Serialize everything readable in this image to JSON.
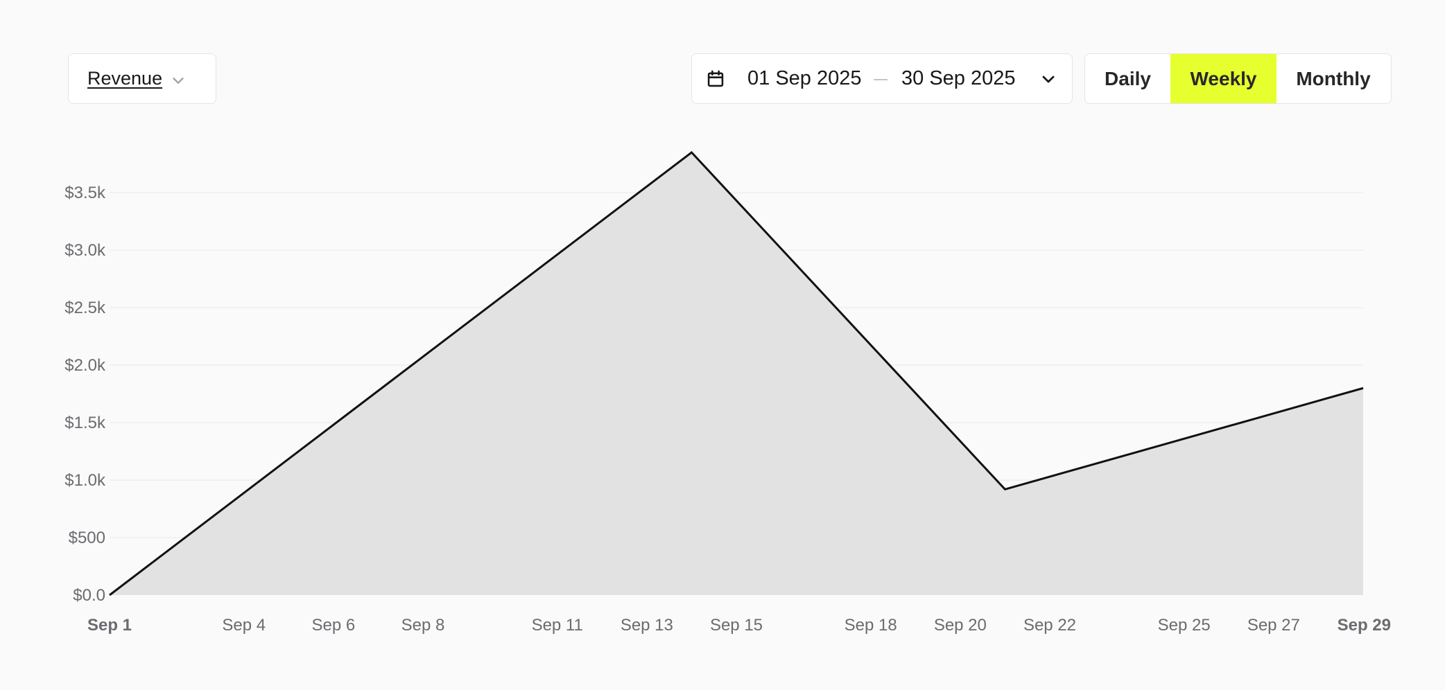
{
  "metric_selector": {
    "label": "Revenue",
    "icon": "chevron-down-icon"
  },
  "date_range": {
    "start": "01 Sep 2025",
    "end": "30 Sep 2025",
    "icon": "calendar-icon"
  },
  "period_toggle": {
    "options": [
      "Daily",
      "Weekly",
      "Monthly"
    ],
    "selected": "Weekly",
    "accent_color": "#e6ff2e"
  },
  "chart_data": {
    "type": "area",
    "x": [
      "Sep 1",
      "Sep 14",
      "Sep 21",
      "Sep 29"
    ],
    "series": [
      {
        "values": [
          0,
          3850,
          920,
          1800
        ]
      }
    ],
    "x_tick_labels": [
      "Sep 1",
      "Sep 4",
      "Sep 6",
      "Sep 8",
      "Sep 11",
      "Sep 13",
      "Sep 15",
      "Sep 18",
      "Sep 20",
      "Sep 22",
      "Sep 25",
      "Sep 27",
      "Sep 29"
    ],
    "x_tick_days": [
      1,
      4,
      6,
      8,
      11,
      13,
      15,
      18,
      20,
      22,
      25,
      27,
      29
    ],
    "bold_x_ticks": [
      "Sep 1",
      "Sep 29"
    ],
    "y_ticks": [
      0,
      500,
      1000,
      1500,
      2000,
      2500,
      3000,
      3500
    ],
    "y_tick_labels": [
      "$0.0",
      "$500",
      "$1.0k",
      "$1.5k",
      "$2.0k",
      "$2.5k",
      "$3.0k",
      "$3.5k"
    ],
    "ylim": [
      0,
      3850
    ],
    "xlim_days": [
      1,
      29
    ],
    "grid": true,
    "line_color": "#111111",
    "fill_color": "#e2e2e2"
  }
}
